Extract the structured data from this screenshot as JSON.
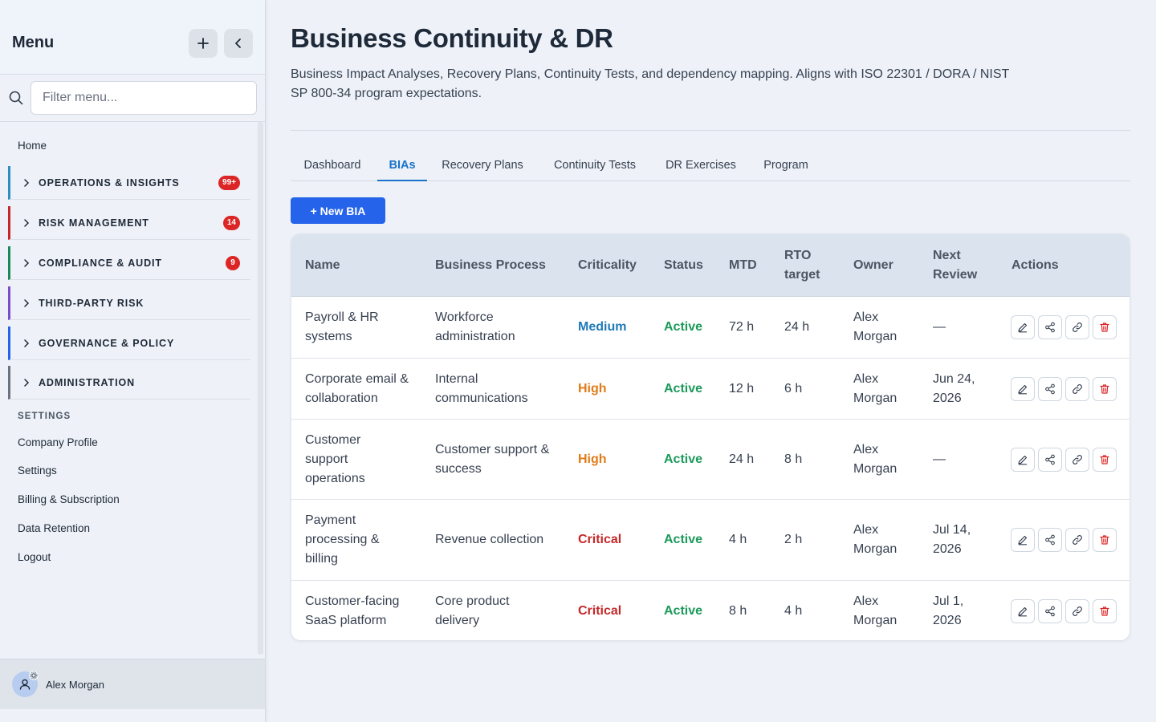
{
  "sidebar": {
    "title": "Menu",
    "search_placeholder": "Filter menu...",
    "home_label": "Home",
    "groups": [
      {
        "label": "OPERATIONS & INSIGHTS",
        "badge": "99+",
        "color": "#2d8fc4"
      },
      {
        "label": "RISK MANAGEMENT",
        "badge": "14",
        "color": "#c62828"
      },
      {
        "label": "COMPLIANCE & AUDIT",
        "badge": "9",
        "color": "#1b8a5a"
      },
      {
        "label": "THIRD-PARTY RISK",
        "badge": "",
        "color": "#7b4fc9"
      },
      {
        "label": "GOVERNANCE & POLICY",
        "badge": "",
        "color": "#2563eb"
      },
      {
        "label": "ADMINISTRATION",
        "badge": "",
        "color": "#6b7280"
      }
    ],
    "settings_heading": "SETTINGS",
    "settings_items": [
      "Company Profile",
      "Settings",
      "Billing & Subscription",
      "Data Retention",
      "Logout"
    ],
    "user_name": "Alex Morgan"
  },
  "page": {
    "title": "Business Continuity & DR",
    "description": "Business Impact Analyses, Recovery Plans, Continuity Tests, and dependency mapping. Aligns with ISO 22301 / DORA / NIST SP 800-34 program expectations.",
    "tabs": [
      "Dashboard",
      "BIAs",
      "Recovery Plans",
      "Continuity Tests",
      "DR Exercises",
      "Program"
    ],
    "active_tab": "BIAs",
    "new_button": "+ New BIA"
  },
  "table": {
    "columns": [
      "Name",
      "Business Process",
      "Criticality",
      "Status",
      "MTD",
      "RTO target",
      "Owner",
      "Next Review",
      "Actions"
    ],
    "rows": [
      {
        "name": "Payroll & HR systems",
        "process": "Workforce administration",
        "criticality": "Medium",
        "status": "Active",
        "mtd": "72 h",
        "rto": "24 h",
        "owner": "Alex Morgan",
        "next_review": "—"
      },
      {
        "name": "Corporate email & collaboration",
        "process": "Internal communications",
        "criticality": "High",
        "status": "Active",
        "mtd": "12 h",
        "rto": "6 h",
        "owner": "Alex Morgan",
        "next_review": "Jun 24, 2026"
      },
      {
        "name": "Customer support operations",
        "process": "Customer support & success",
        "criticality": "High",
        "status": "Active",
        "mtd": "24 h",
        "rto": "8 h",
        "owner": "Alex Morgan",
        "next_review": "—"
      },
      {
        "name": "Payment processing & billing",
        "process": "Revenue collection",
        "criticality": "Critical",
        "status": "Active",
        "mtd": "4 h",
        "rto": "2 h",
        "owner": "Alex Morgan",
        "next_review": "Jul 14, 2026"
      },
      {
        "name": "Customer-facing SaaS platform",
        "process": "Core product delivery",
        "criticality": "Critical",
        "status": "Active",
        "mtd": "8 h",
        "rto": "4 h",
        "owner": "Alex Morgan",
        "next_review": "Jul 1, 2026"
      }
    ],
    "row_actions": [
      "edit-icon",
      "share-icon",
      "link-icon",
      "delete-icon"
    ]
  }
}
